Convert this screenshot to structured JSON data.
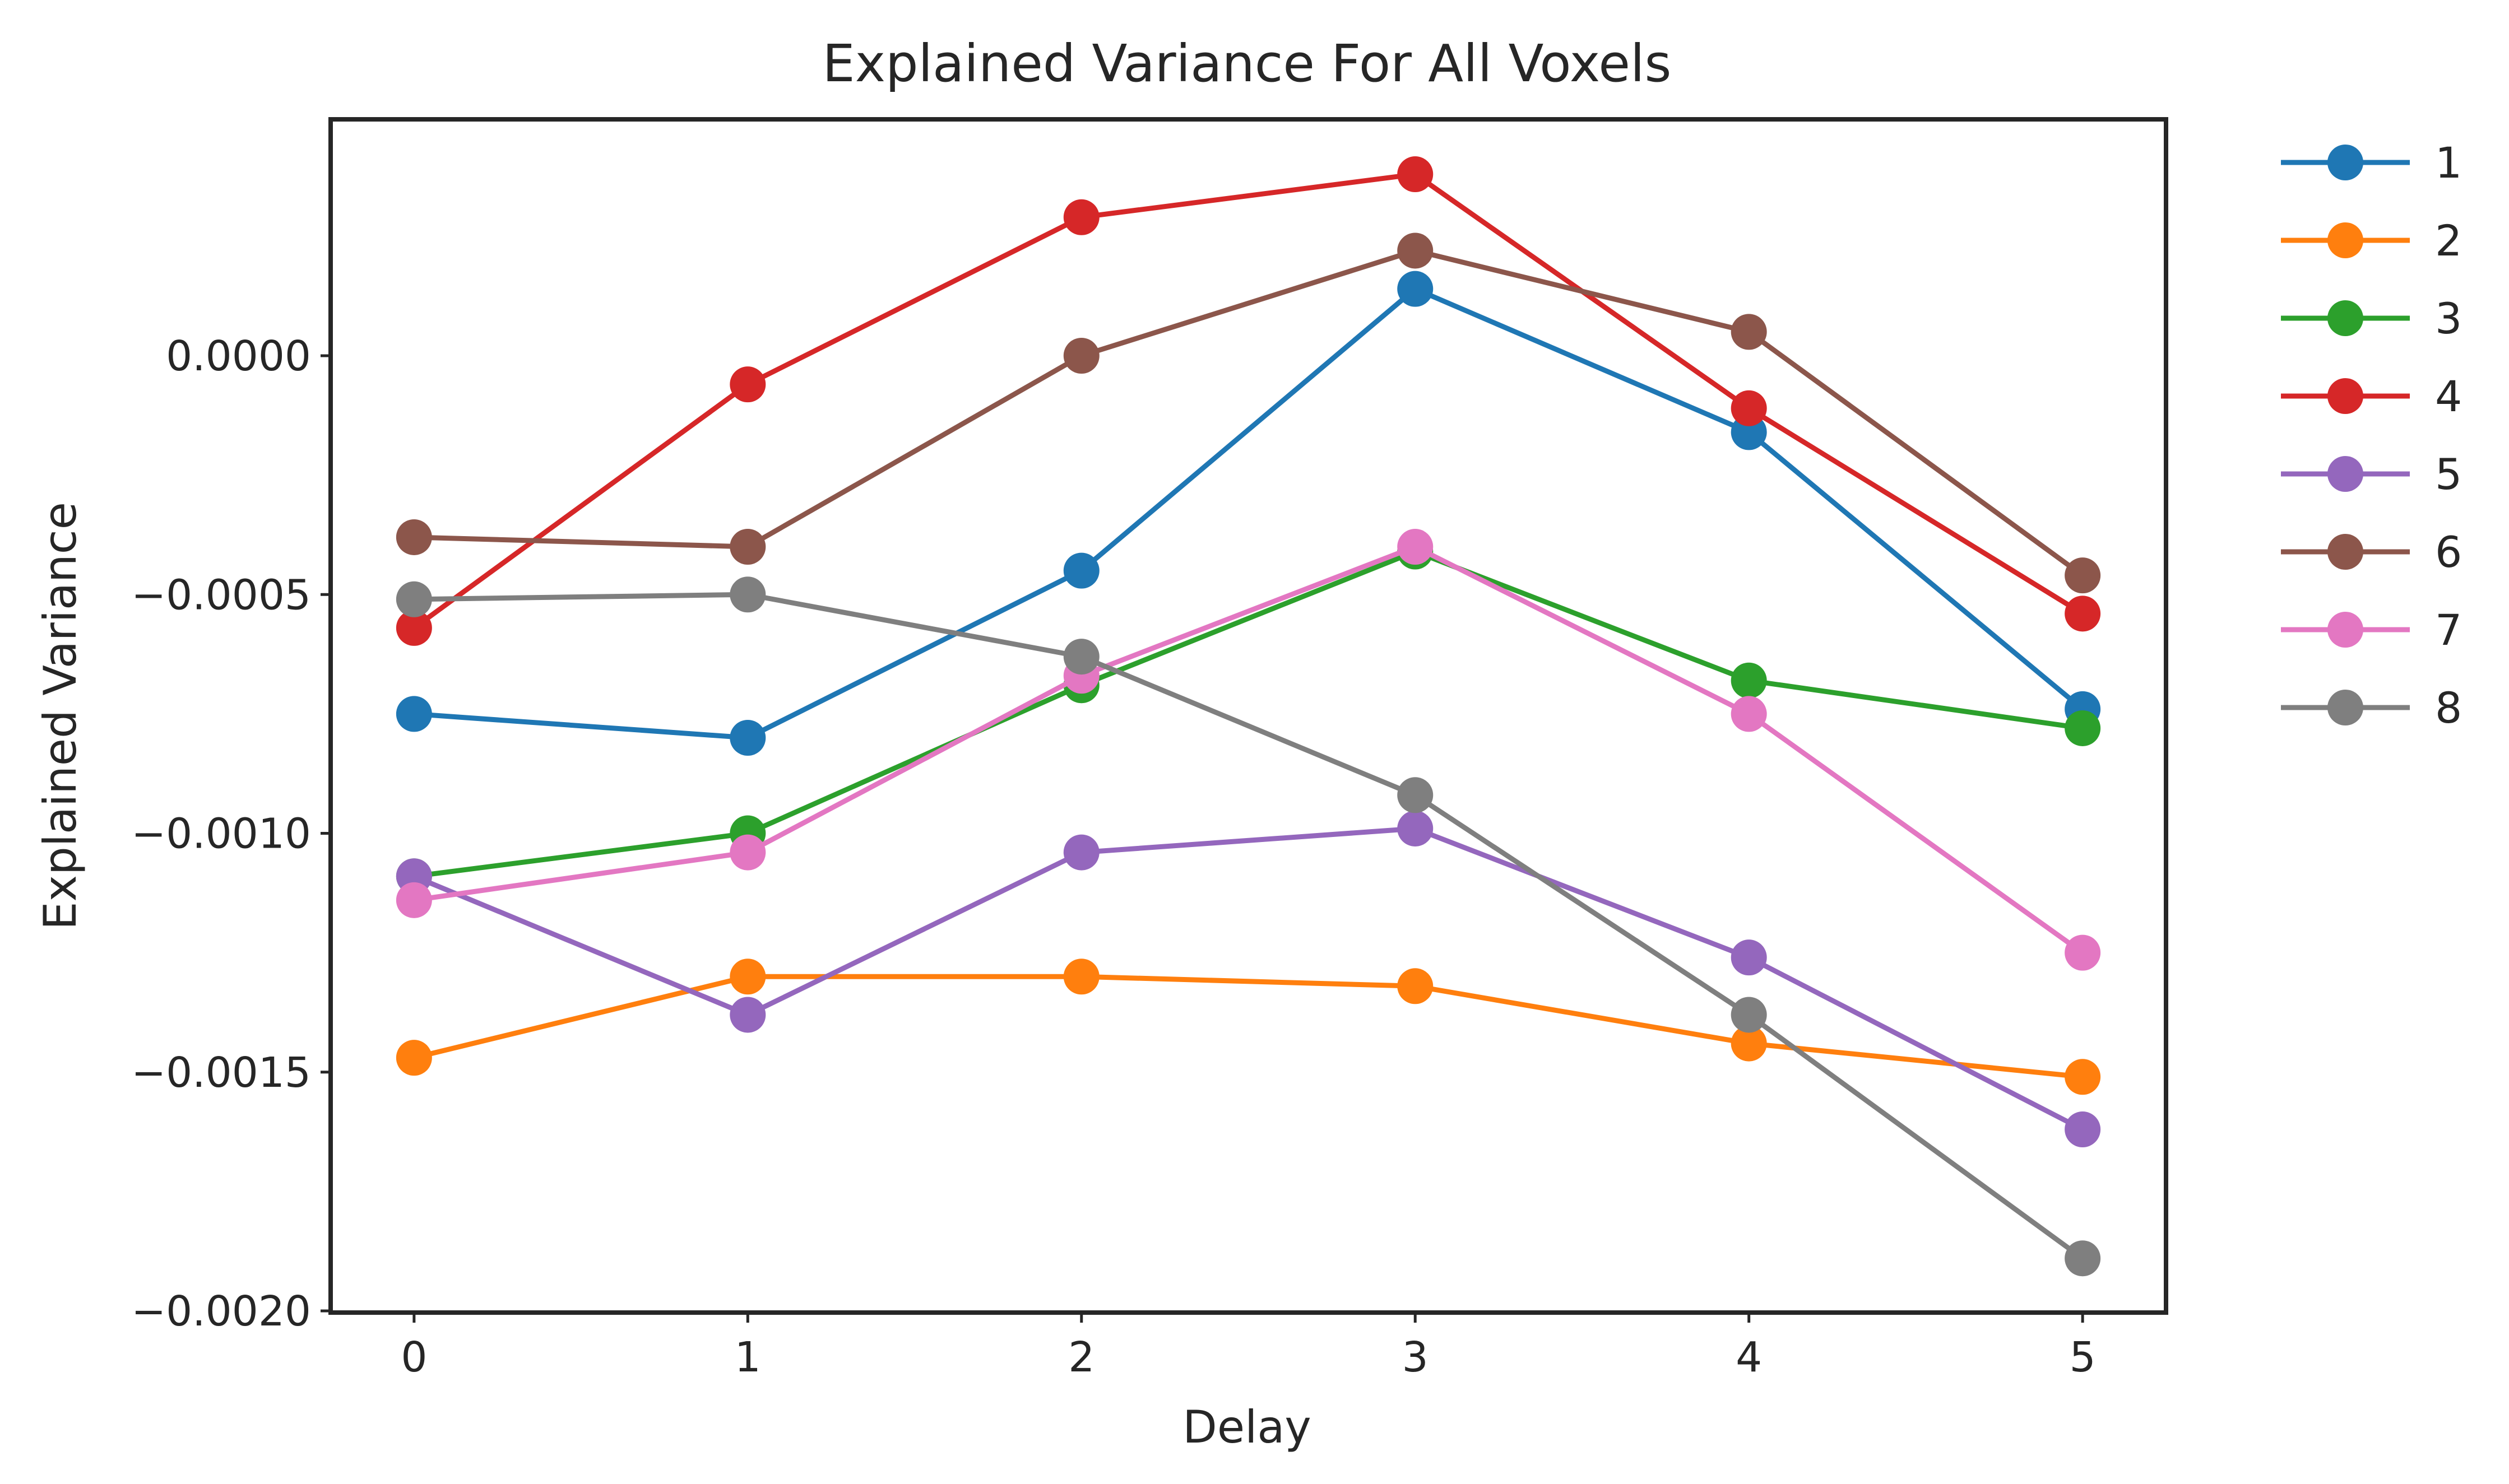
{
  "chart_data": {
    "type": "line",
    "title": "Explained Variance For All Voxels",
    "xlabel": "Delay",
    "ylabel": "Explained Variance",
    "x": [
      0,
      1,
      2,
      3,
      4,
      5
    ],
    "x_tick_labels": [
      "0",
      "1",
      "2",
      "3",
      "4",
      "5"
    ],
    "xlim": [
      -0.25,
      5.25
    ],
    "ylim": [
      -0.002,
      0.0005
    ],
    "y_ticks": [
      0.0,
      -0.0005,
      -0.001,
      -0.0015,
      -0.002
    ],
    "y_tick_labels": [
      "0.0000",
      "−0.0005",
      "−0.0010",
      "−0.0015",
      "−0.0020"
    ],
    "grid": false,
    "legend_position": "outside-right",
    "series": [
      {
        "name": "1",
        "color": "#1f77b4",
        "values": [
          -0.00075,
          -0.0008,
          -0.00045,
          0.00014,
          -0.00016,
          -0.00074
        ]
      },
      {
        "name": "2",
        "color": "#ff7f0e",
        "values": [
          -0.00147,
          -0.0013,
          -0.0013,
          -0.00132,
          -0.00144,
          -0.00151
        ]
      },
      {
        "name": "3",
        "color": "#2ca02c",
        "values": [
          -0.00109,
          -0.001,
          -0.00069,
          -0.00041,
          -0.00068,
          -0.00078
        ]
      },
      {
        "name": "4",
        "color": "#d62728",
        "values": [
          -0.00057,
          -6e-05,
          0.00029,
          0.00038,
          -0.00011,
          -0.00054
        ]
      },
      {
        "name": "5",
        "color": "#9467bd",
        "values": [
          -0.00109,
          -0.00138,
          -0.00104,
          -0.00099,
          -0.00126,
          -0.00162
        ]
      },
      {
        "name": "6",
        "color": "#8c564b",
        "values": [
          -0.00038,
          -0.0004,
          0.0,
          0.00022,
          5e-05,
          -0.00046
        ]
      },
      {
        "name": "7",
        "color": "#e377c2",
        "values": [
          -0.00114,
          -0.00104,
          -0.00067,
          -0.0004,
          -0.00075,
          -0.00125
        ]
      },
      {
        "name": "8",
        "color": "#7f7f7f",
        "values": [
          -0.00051,
          -0.0005,
          -0.00063,
          -0.00092,
          -0.00138,
          -0.00189
        ]
      }
    ]
  }
}
